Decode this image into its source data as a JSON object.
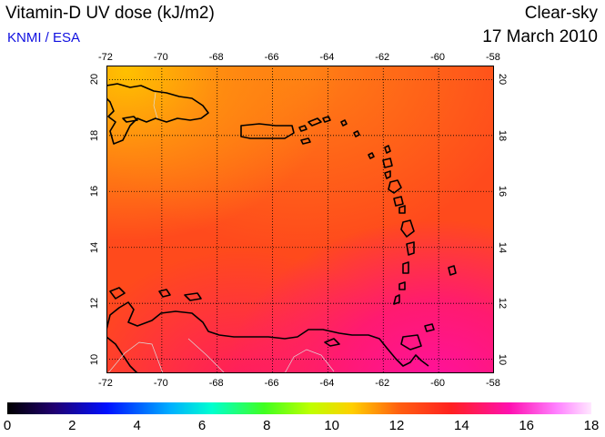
{
  "header": {
    "title": "Vitamin-D UV dose (kJ/m2)",
    "source": "KNMI / ESA",
    "condition": "Clear-sky",
    "date": "17 March 2010"
  },
  "map": {
    "lon_range": [
      -72,
      -58
    ],
    "lat_range": [
      9.5,
      20.5
    ],
    "lon_ticks": [
      "-72",
      "-70",
      "-68",
      "-66",
      "-64",
      "-62",
      "-60",
      "-58"
    ],
    "lat_ticks": [
      "10",
      "12",
      "14",
      "16",
      "18",
      "20"
    ],
    "grid": "dotted",
    "colors": {
      "north_high": "#ff9a10",
      "mid": "#ff4a1a",
      "south_magenta": "#ff1a8a",
      "coastline": "#000000",
      "borders": "#dddddd"
    }
  },
  "colorbar": {
    "labels": [
      "0",
      "2",
      "4",
      "6",
      "8",
      "10",
      "12",
      "14",
      "16",
      "18"
    ],
    "min": 0,
    "max": 18
  }
}
